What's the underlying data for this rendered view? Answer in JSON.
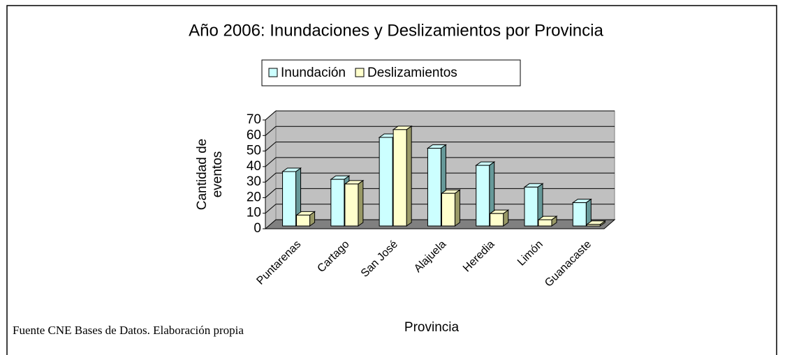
{
  "chart_data": {
    "type": "bar3d",
    "title": "Año 2006: Inundaciones y Deslizamientos por Provincia",
    "x_label": "Provincia",
    "y_label": "Cantidad de eventos",
    "note": "Fuente CNE Bases de Datos. Elaboración propia",
    "categories": [
      "Puntarenas",
      "Cartago",
      "San José",
      "Alajuela",
      "Heredia",
      "Limón",
      "Guanacaste"
    ],
    "series": [
      {
        "name": "Inundación",
        "color": "#ccffff",
        "values": [
          35,
          30,
          57,
          50,
          39,
          25,
          15
        ]
      },
      {
        "name": "Deslizamientos",
        "color": "#ffffcc",
        "values": [
          7,
          27,
          62,
          21,
          8,
          4,
          1
        ]
      }
    ],
    "ylim": [
      0,
      70
    ],
    "yticks": [
      0,
      10,
      20,
      30,
      40,
      50,
      60,
      70
    ],
    "grid": true,
    "legend": "top"
  }
}
